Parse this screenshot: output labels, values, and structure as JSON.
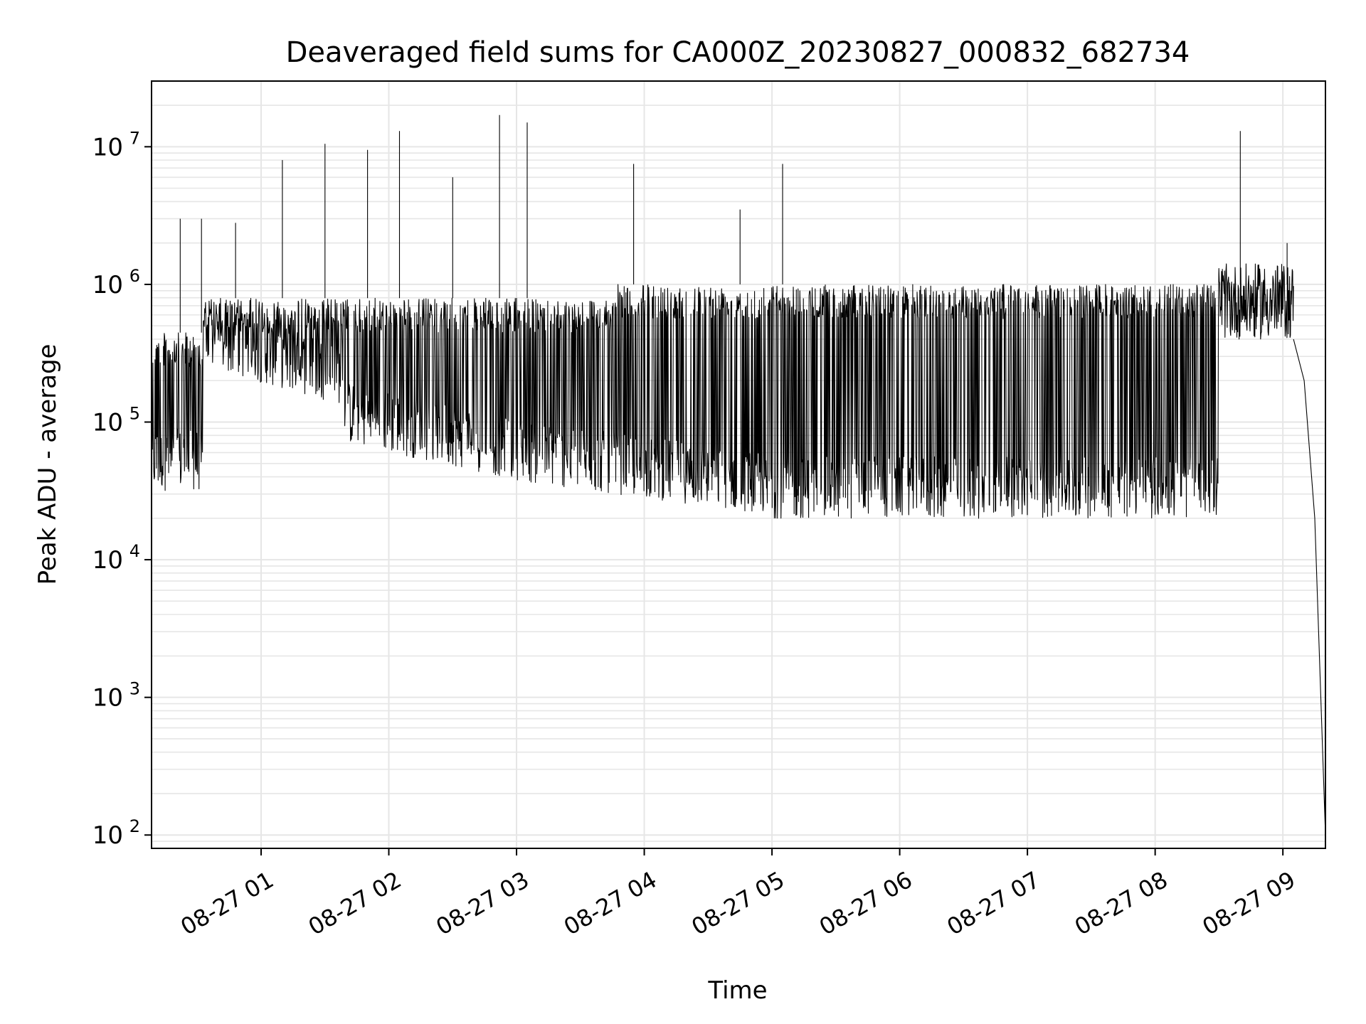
{
  "chart_data": {
    "type": "line",
    "title": "Deaveraged field sums for CA000Z_20230827_000832_682734",
    "xlabel": "Time",
    "ylabel": "Peak ADU - average",
    "yscale": "log",
    "ylim": [
      80,
      30000000
    ],
    "xlim": [
      "2023-08-27 00:08:32",
      "2023-08-27 09:20:00"
    ],
    "x_ticks": [
      "08-27 01",
      "08-27 02",
      "08-27 03",
      "08-27 04",
      "08-27 05",
      "08-27 06",
      "08-27 07",
      "08-27 08",
      "08-27 09"
    ],
    "y_ticks": [
      {
        "base": "10",
        "exp": "2"
      },
      {
        "base": "10",
        "exp": "3"
      },
      {
        "base": "10",
        "exp": "4"
      },
      {
        "base": "10",
        "exp": "5"
      },
      {
        "base": "10",
        "exp": "6"
      },
      {
        "base": "10",
        "exp": "7"
      }
    ],
    "grid": true,
    "series": [
      {
        "color": "#000000",
        "points": [
          [
            "2023-08-27 00:08:32",
            350000
          ],
          [
            "2023-08-27 00:15",
            450000
          ],
          [
            "2023-08-27 00:20",
            400000
          ],
          [
            "2023-08-27 00:22",
            3000000
          ],
          [
            "2023-08-27 00:25",
            420000
          ],
          [
            "2023-08-27 00:28",
            500000
          ],
          [
            "2023-08-27 00:32",
            3000000
          ],
          [
            "2023-08-27 00:35",
            900000
          ],
          [
            "2023-08-27 00:40",
            1100000
          ],
          [
            "2023-08-27 00:45",
            700000
          ],
          [
            "2023-08-27 00:48",
            2800000
          ],
          [
            "2023-08-27 00:52",
            600000
          ],
          [
            "2023-08-27 00:55",
            100000
          ],
          [
            "2023-08-27 01:00",
            300000
          ],
          [
            "2023-08-27 01:10",
            8000000
          ],
          [
            "2023-08-27 01:20",
            60000
          ],
          [
            "2023-08-27 01:30",
            10500000
          ],
          [
            "2023-08-27 01:45",
            200000
          ],
          [
            "2023-08-27 01:50",
            9500000
          ],
          [
            "2023-08-27 02:00",
            50000
          ],
          [
            "2023-08-27 02:05",
            13000000
          ],
          [
            "2023-08-27 02:20",
            70000
          ],
          [
            "2023-08-27 02:30",
            6000000
          ],
          [
            "2023-08-27 02:45",
            60000
          ],
          [
            "2023-08-27 02:52",
            17000000
          ],
          [
            "2023-08-27 03:00",
            45000
          ],
          [
            "2023-08-27 03:05",
            15000000
          ],
          [
            "2023-08-27 03:20",
            40000
          ],
          [
            "2023-08-27 03:35",
            1200000
          ],
          [
            "2023-08-27 03:55",
            7500000
          ],
          [
            "2023-08-27 04:00",
            35000
          ],
          [
            "2023-08-27 04:20",
            25000
          ],
          [
            "2023-08-27 04:40",
            20000
          ],
          [
            "2023-08-27 04:45",
            3500000
          ],
          [
            "2023-08-27 05:00",
            22000
          ],
          [
            "2023-08-27 05:05",
            7500000
          ],
          [
            "2023-08-27 05:30",
            900000
          ],
          [
            "2023-08-27 06:00",
            950000
          ],
          [
            "2023-08-27 06:30",
            800000
          ],
          [
            "2023-08-27 07:00",
            900000
          ],
          [
            "2023-08-27 07:30",
            700000
          ],
          [
            "2023-08-27 08:00",
            800000
          ],
          [
            "2023-08-27 08:30",
            1200000
          ],
          [
            "2023-08-27 08:40",
            13000000
          ],
          [
            "2023-08-27 08:50",
            1000000
          ],
          [
            "2023-08-27 09:00",
            600000
          ],
          [
            "2023-08-27 09:02",
            2000000
          ],
          [
            "2023-08-27 09:05",
            400000
          ],
          [
            "2023-08-27 09:10",
            200000
          ],
          [
            "2023-08-27 09:15",
            20000
          ],
          [
            "2023-08-27 09:20",
            100
          ]
        ]
      }
    ]
  }
}
